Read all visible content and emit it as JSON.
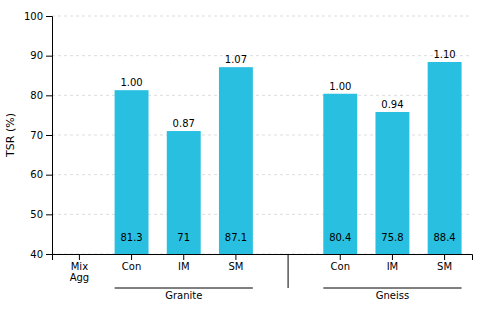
{
  "chart_data": {
    "type": "bar",
    "y_label": "TSR (%)",
    "categories": [
      "Mix\nAgg",
      "Con",
      "IM",
      "SM",
      null,
      "Con",
      "IM",
      "SM"
    ],
    "values": [
      null,
      81.3,
      71.0,
      87.1,
      null,
      80.4,
      75.8,
      88.4
    ],
    "ratio_labels": [
      null,
      "1.00",
      "0.87",
      "1.07",
      null,
      "1.00",
      "0.94",
      "1.10"
    ],
    "category_groups": [
      null,
      "Granite",
      "Granite",
      "Granite",
      null,
      "Gneiss",
      "Gneiss",
      "Gneiss"
    ],
    "color": "#28bfe0",
    "ylim": [
      40,
      100
    ],
    "yticks": [
      40,
      50,
      60,
      70,
      80,
      90,
      100
    ],
    "grid": true,
    "data_labels": true
  }
}
